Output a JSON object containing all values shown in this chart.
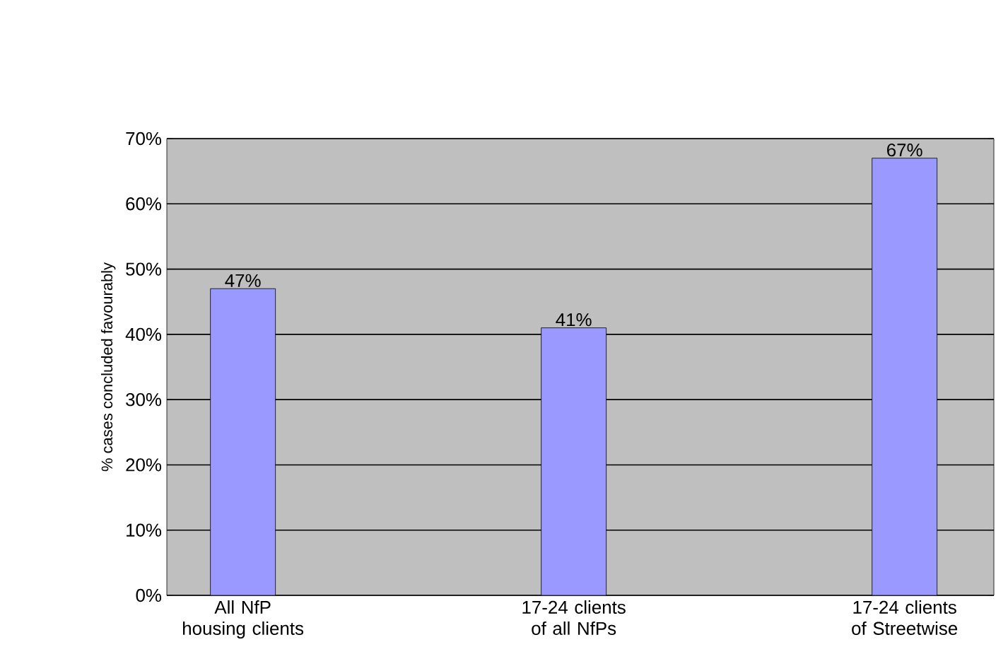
{
  "chart_data": {
    "type": "bar",
    "ylabel": "% cases concluded favourably",
    "categories": [
      "All NfP housing clients",
      "17-24 clients of all NfPs",
      "17-24 clients of Streetwise"
    ],
    "values": [
      47,
      41,
      67
    ],
    "value_labels": [
      "47%",
      "41%",
      "67%"
    ],
    "color": "#9999ff",
    "ylim": [
      0,
      70
    ],
    "yticks": [
      {
        "value": 0,
        "label": "0%"
      },
      {
        "value": 10,
        "label": "10%"
      },
      {
        "value": 20,
        "label": "20%"
      },
      {
        "value": 30,
        "label": "30%"
      },
      {
        "value": 40,
        "label": "40%"
      },
      {
        "value": 50,
        "label": "50%"
      },
      {
        "value": 60,
        "label": "60%"
      },
      {
        "value": 70,
        "label": "70%"
      }
    ],
    "grid": "y"
  }
}
